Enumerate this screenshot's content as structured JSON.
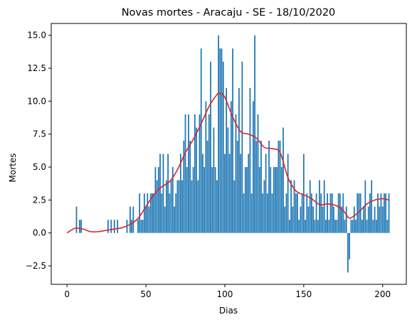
{
  "chart_data": {
    "type": "bar",
    "title": "Novas mortes - Aracaju - SE - 18/10/2020",
    "xlabel": "Dias",
    "ylabel": "Mortes",
    "xlim": [
      -10,
      215
    ],
    "ylim": [
      -3.9,
      15.9
    ],
    "xticks": [
      0,
      50,
      100,
      150,
      200
    ],
    "xtick_labels": [
      "0",
      "50",
      "100",
      "150",
      "200"
    ],
    "yticks": [
      -2.5,
      0.0,
      2.5,
      5.0,
      7.5,
      10.0,
      12.5,
      15.0
    ],
    "ytick_labels": [
      "−2.5",
      "0.0",
      "2.5",
      "5.0",
      "7.5",
      "10.0",
      "12.5",
      "15.0"
    ],
    "grid": false,
    "bar_color": "#1f77b4",
    "line_color": "#d62728",
    "series": [
      {
        "type": "bar",
        "x": [
          0,
          1,
          2,
          3,
          4,
          5,
          6,
          7,
          8,
          9,
          10,
          11,
          12,
          13,
          14,
          15,
          16,
          17,
          18,
          19,
          20,
          21,
          22,
          23,
          24,
          25,
          26,
          27,
          28,
          29,
          30,
          31,
          32,
          33,
          34,
          35,
          36,
          37,
          38,
          39,
          40,
          41,
          42,
          43,
          44,
          45,
          46,
          47,
          48,
          49,
          50,
          51,
          52,
          53,
          54,
          55,
          56,
          57,
          58,
          59,
          60,
          61,
          62,
          63,
          64,
          65,
          66,
          67,
          68,
          69,
          70,
          71,
          72,
          73,
          74,
          75,
          76,
          77,
          78,
          79,
          80,
          81,
          82,
          83,
          84,
          85,
          86,
          87,
          88,
          89,
          90,
          91,
          92,
          93,
          94,
          95,
          96,
          97,
          98,
          99,
          100,
          101,
          102,
          103,
          104,
          105,
          106,
          107,
          108,
          109,
          110,
          111,
          112,
          113,
          114,
          115,
          116,
          117,
          118,
          119,
          120,
          121,
          122,
          123,
          124,
          125,
          126,
          127,
          128,
          129,
          130,
          131,
          132,
          133,
          134,
          135,
          136,
          137,
          138,
          139,
          140,
          141,
          142,
          143,
          144,
          145,
          146,
          147,
          148,
          149,
          150,
          151,
          152,
          153,
          154,
          155,
          156,
          157,
          158,
          159,
          160,
          161,
          162,
          163,
          164,
          165,
          166,
          167,
          168,
          169,
          170,
          171,
          172,
          173,
          174,
          175,
          176,
          177,
          178,
          179,
          180,
          181,
          182,
          183,
          184,
          185,
          186,
          187,
          188,
          189,
          190,
          191,
          192,
          193,
          194,
          195,
          196,
          197,
          198,
          199,
          200,
          201,
          202,
          203,
          204
        ],
        "values": [
          0,
          0,
          0,
          0,
          0,
          0,
          2,
          0,
          1,
          1,
          0,
          0,
          0,
          0,
          0,
          0,
          0,
          0,
          0,
          0,
          0,
          0,
          0,
          0,
          0,
          0,
          1,
          0,
          1,
          0,
          1,
          0,
          1,
          0,
          0,
          0,
          0,
          0,
          1,
          0,
          2,
          1,
          2,
          0,
          0,
          1,
          3,
          1,
          1,
          3,
          2,
          3,
          2,
          3,
          3,
          3,
          5,
          4,
          5,
          6,
          3,
          6,
          2,
          4,
          6,
          3,
          4,
          5,
          2,
          3,
          4,
          4,
          6,
          4,
          7,
          9,
          5,
          9,
          7,
          4,
          5,
          9,
          8,
          4,
          9,
          14,
          6,
          5,
          10,
          7,
          9,
          13,
          5,
          8,
          5,
          4,
          15,
          14,
          14,
          13,
          6,
          11,
          8,
          6,
          10,
          14,
          4,
          9,
          7,
          11,
          6,
          13,
          3,
          5,
          5,
          6,
          11,
          3,
          10,
          15,
          7,
          9,
          5,
          7,
          3,
          4,
          6,
          3,
          7,
          5,
          3,
          5,
          5,
          5,
          7,
          7,
          5,
          8,
          2,
          3,
          6,
          1,
          4,
          2,
          4,
          3,
          3,
          1,
          2,
          3,
          6,
          1,
          3,
          2,
          4,
          3,
          2,
          1,
          3,
          1,
          4,
          3,
          2,
          4,
          1,
          3,
          1,
          3,
          3,
          2,
          1,
          1,
          3,
          3,
          2,
          3,
          1,
          2,
          -3,
          -2,
          1,
          1,
          2,
          1,
          3,
          3,
          3,
          1,
          2,
          4,
          1,
          2,
          3,
          4,
          1,
          2,
          1,
          3,
          2,
          3,
          2,
          3,
          3,
          1,
          3
        ]
      },
      {
        "type": "line",
        "name": "",
        "x": [
          0,
          5,
          10,
          15,
          20,
          25,
          30,
          35,
          40,
          45,
          50,
          55,
          60,
          65,
          70,
          75,
          80,
          85,
          90,
          95,
          97,
          100,
          105,
          110,
          115,
          120,
          125,
          130,
          135,
          140,
          145,
          150,
          155,
          160,
          165,
          170,
          175,
          178,
          180,
          185,
          190,
          195,
          200,
          204
        ],
        "values": [
          0.0,
          0.35,
          0.3,
          0.1,
          0.1,
          0.2,
          0.3,
          0.4,
          0.65,
          1.1,
          2.0,
          2.9,
          3.5,
          3.9,
          4.8,
          6.1,
          7.1,
          8.3,
          9.6,
          10.5,
          10.6,
          10.3,
          8.8,
          7.7,
          7.5,
          7.2,
          6.5,
          6.4,
          6.1,
          4.2,
          3.2,
          2.9,
          2.6,
          2.15,
          2.2,
          2.1,
          1.7,
          1.2,
          1.15,
          1.6,
          2.2,
          2.5,
          2.6,
          2.5
        ]
      }
    ]
  }
}
